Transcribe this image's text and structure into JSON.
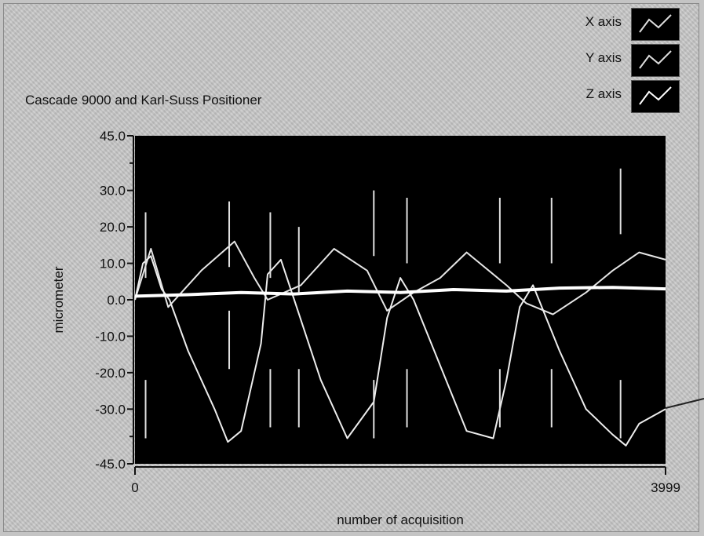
{
  "chart_data": {
    "type": "line",
    "title": "Cascade 9000 and Karl-Suss Positioner",
    "xlabel": "number of acquisition",
    "ylabel": "micrometer",
    "xlim": [
      0,
      3999
    ],
    "ylim": [
      -45,
      45
    ],
    "x_tick_labels": [
      "0",
      "3999"
    ],
    "y_tick_labels": [
      "45.0",
      "30.0",
      "20.0",
      "10.0",
      "0.0",
      "-10.0",
      "-20.0",
      "-30.0",
      "-45.0"
    ],
    "y_tick_values": [
      45,
      30,
      20,
      10,
      0,
      -10,
      -20,
      -30,
      -45
    ],
    "grid": false,
    "legend_position": "top-right",
    "series": [
      {
        "name": "X axis",
        "color": "#e6e6e6",
        "x": [
          0,
          120,
          250,
          500,
          750,
          900,
          1000,
          1250,
          1500,
          1750,
          1900,
          2100,
          2300,
          2500,
          2800,
          2950,
          3150,
          3400,
          3600,
          3800,
          3999
        ],
        "values": [
          0,
          14,
          -2,
          8,
          16,
          6,
          0,
          4,
          14,
          8,
          -3,
          2,
          6,
          13,
          4,
          -1,
          -4,
          2,
          8,
          13,
          11
        ]
      },
      {
        "name": "Y axis",
        "color": "#ededed",
        "x": [
          0,
          60,
          120,
          200,
          260,
          400,
          600,
          700,
          800,
          950,
          1000,
          1100,
          1200,
          1400,
          1600,
          1800,
          1900,
          2000,
          2100,
          2300,
          2500,
          2700,
          2800,
          2900,
          3000,
          3200,
          3400,
          3600,
          3700,
          3800,
          3999
        ],
        "values": [
          0,
          10,
          12,
          3,
          0,
          -14,
          -30,
          -39,
          -36,
          -12,
          7,
          11,
          0,
          -22,
          -38,
          -28,
          -5,
          6,
          0,
          -18,
          -36,
          -38,
          -22,
          -2,
          4,
          -14,
          -30,
          -37,
          -40,
          -34,
          -30
        ]
      },
      {
        "name": "Z axis",
        "color": "#ffffff",
        "x": [
          0,
          400,
          800,
          1200,
          1600,
          2000,
          2400,
          2800,
          3200,
          3600,
          3999
        ],
        "values": [
          1.0,
          1.4,
          2.0,
          1.6,
          2.4,
          2.0,
          2.8,
          2.4,
          3.2,
          3.4,
          3.0
        ]
      }
    ],
    "spikes": {
      "x": [
        80,
        710,
        1020,
        1235,
        1800,
        2050,
        2750,
        3140,
        3660
      ],
      "upper": [
        24,
        27,
        24,
        20,
        30,
        28,
        28,
        28,
        36
      ],
      "lower": [
        -38,
        -19,
        -35,
        -35,
        -38,
        -35,
        -35,
        -35,
        -38
      ]
    }
  }
}
